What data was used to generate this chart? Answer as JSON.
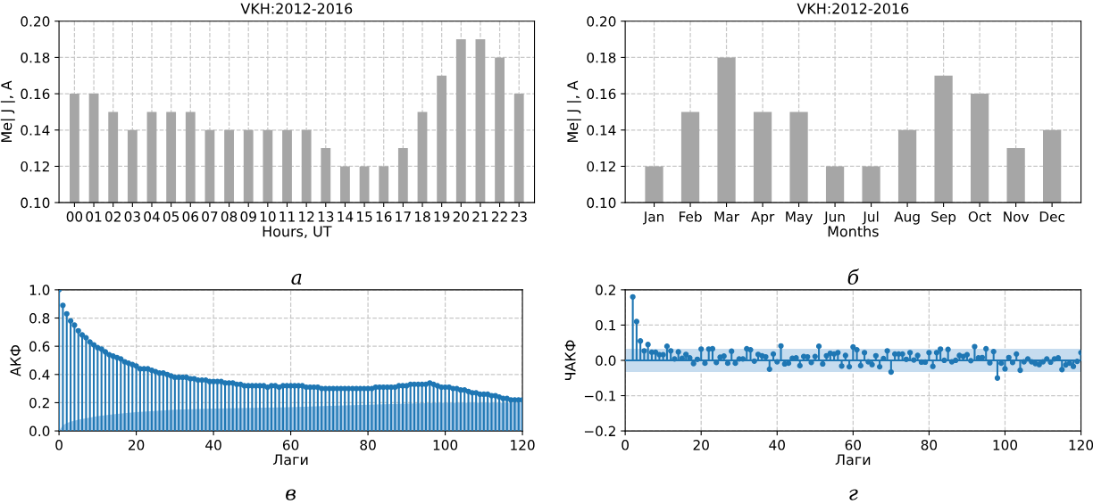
{
  "chart_data": [
    {
      "type": "bar",
      "title": "VKH:2012-2016",
      "xlabel": "Hours, UT",
      "ylabel": "Me| J |, A",
      "categories": [
        "00",
        "01",
        "02",
        "03",
        "04",
        "05",
        "06",
        "07",
        "08",
        "09",
        "10",
        "11",
        "12",
        "13",
        "14",
        "15",
        "16",
        "17",
        "18",
        "19",
        "20",
        "21",
        "22",
        "23"
      ],
      "series": [
        {
          "color": "#a6a6a6",
          "values": [
            0.16,
            0.16,
            0.15,
            0.14,
            0.15,
            0.15,
            0.15,
            0.14,
            0.14,
            0.14,
            0.14,
            0.14,
            0.14,
            0.13,
            0.12,
            0.12,
            0.12,
            0.13,
            0.15,
            0.17,
            0.19,
            0.19,
            0.18,
            0.16
          ]
        }
      ],
      "ylim": [
        0.1,
        0.2
      ],
      "yticks": [
        {
          "value": 0.1,
          "label": "0.10"
        },
        {
          "value": 0.12,
          "label": "0.12"
        },
        {
          "value": 0.14,
          "label": "0.14"
        },
        {
          "value": 0.16,
          "label": "0.16"
        },
        {
          "value": 0.18,
          "label": "0.18"
        },
        {
          "value": 0.2,
          "label": "0.20"
        }
      ],
      "grid": true,
      "annotations": [
        "а"
      ]
    },
    {
      "type": "bar",
      "title": "VKH:2012-2016",
      "xlabel": "Months",
      "ylabel": "Me| J |, A",
      "categories": [
        "Jan",
        "Feb",
        "Mar",
        "Apr",
        "May",
        "Jun",
        "Jul",
        "Aug",
        "Sep",
        "Oct",
        "Nov",
        "Dec"
      ],
      "series": [
        {
          "color": "#a6a6a6",
          "values": [
            0.12,
            0.15,
            0.18,
            0.15,
            0.15,
            0.12,
            0.12,
            0.14,
            0.17,
            0.16,
            0.13,
            0.14
          ]
        }
      ],
      "ylim": [
        0.1,
        0.2
      ],
      "yticks": [
        {
          "value": 0.1,
          "label": "0.10"
        },
        {
          "value": 0.12,
          "label": "0.12"
        },
        {
          "value": 0.14,
          "label": "0.14"
        },
        {
          "value": 0.16,
          "label": "0.16"
        },
        {
          "value": 0.18,
          "label": "0.18"
        },
        {
          "value": 0.2,
          "label": "0.20"
        }
      ],
      "grid": true,
      "annotations": [
        "б"
      ]
    },
    {
      "type": "lollipop",
      "xlabel": "Лаги",
      "ylabel": "АКФ",
      "series": [
        {
          "type": "lollipop",
          "marker": "circle",
          "color": "#1f77b4",
          "x": [
            0,
            1,
            2,
            3,
            4,
            5,
            6,
            7,
            8,
            9,
            10,
            11,
            12,
            13,
            14,
            15,
            16,
            17,
            18,
            19,
            20,
            21,
            22,
            23,
            24,
            25,
            26,
            27,
            28,
            29,
            30,
            31,
            32,
            33,
            34,
            35,
            36,
            37,
            38,
            39,
            40,
            41,
            42,
            43,
            44,
            45,
            46,
            47,
            48,
            49,
            50,
            51,
            52,
            53,
            54,
            55,
            56,
            57,
            58,
            59,
            60,
            61,
            62,
            63,
            64,
            65,
            66,
            67,
            68,
            69,
            70,
            71,
            72,
            73,
            74,
            75,
            76,
            77,
            78,
            79,
            80,
            81,
            82,
            83,
            84,
            85,
            86,
            87,
            88,
            89,
            90,
            91,
            92,
            93,
            94,
            95,
            96,
            97,
            98,
            99,
            100,
            101,
            102,
            103,
            104,
            105,
            106,
            107,
            108,
            109,
            110,
            111,
            112,
            113,
            114,
            115,
            116,
            117,
            118,
            119,
            120
          ],
          "values": [
            1.0,
            0.89,
            0.83,
            0.78,
            0.75,
            0.71,
            0.68,
            0.66,
            0.63,
            0.61,
            0.59,
            0.58,
            0.56,
            0.54,
            0.53,
            0.52,
            0.51,
            0.49,
            0.48,
            0.47,
            0.46,
            0.44,
            0.44,
            0.44,
            0.43,
            0.42,
            0.41,
            0.41,
            0.4,
            0.39,
            0.38,
            0.38,
            0.38,
            0.38,
            0.37,
            0.37,
            0.36,
            0.36,
            0.36,
            0.35,
            0.35,
            0.35,
            0.35,
            0.34,
            0.34,
            0.34,
            0.33,
            0.33,
            0.32,
            0.32,
            0.32,
            0.32,
            0.32,
            0.32,
            0.31,
            0.32,
            0.32,
            0.31,
            0.32,
            0.32,
            0.32,
            0.32,
            0.32,
            0.32,
            0.31,
            0.31,
            0.31,
            0.31,
            0.3,
            0.3,
            0.3,
            0.3,
            0.3,
            0.3,
            0.3,
            0.3,
            0.3,
            0.3,
            0.3,
            0.3,
            0.3,
            0.3,
            0.31,
            0.31,
            0.31,
            0.31,
            0.31,
            0.31,
            0.32,
            0.32,
            0.32,
            0.33,
            0.33,
            0.33,
            0.33,
            0.33,
            0.34,
            0.33,
            0.32,
            0.31,
            0.31,
            0.31,
            0.3,
            0.3,
            0.29,
            0.29,
            0.28,
            0.27,
            0.27,
            0.26,
            0.26,
            0.26,
            0.25,
            0.25,
            0.24,
            0.23,
            0.23,
            0.22,
            0.22,
            0.22,
            0.22
          ]
        },
        {
          "type": "area",
          "color": "#a3c8e7",
          "x": [
            0,
            1,
            2,
            3,
            5,
            10,
            15,
            20,
            30,
            40,
            50,
            60,
            70,
            80,
            90,
            100,
            110,
            120
          ],
          "values": [
            0,
            0.04,
            0.055,
            0.065,
            0.08,
            0.105,
            0.12,
            0.133,
            0.15,
            0.158,
            0.164,
            0.168,
            0.177,
            0.185,
            0.193,
            0.2,
            0.2,
            0.2
          ]
        }
      ],
      "xlim": [
        0,
        120
      ],
      "xticks": [
        0,
        20,
        40,
        60,
        80,
        100,
        120
      ],
      "ylim": [
        0,
        1.0
      ],
      "yticks": [
        {
          "value": 0,
          "label": "0.0"
        },
        {
          "value": 0.2,
          "label": "0.2"
        },
        {
          "value": 0.4,
          "label": "0.4"
        },
        {
          "value": 0.6,
          "label": "0.6"
        },
        {
          "value": 0.8,
          "label": "0.8"
        },
        {
          "value": 1.0,
          "label": "1.0"
        }
      ],
      "grid": true,
      "annotations": [
        "в"
      ]
    },
    {
      "type": "lollipop",
      "xlabel": "Лаги",
      "ylabel": "ЧАКФ",
      "series": [
        {
          "type": "lollipop",
          "marker": "circle",
          "color": "#1f77b4",
          "x": [
            2,
            3,
            4,
            5,
            6,
            7,
            8,
            9,
            10,
            11,
            12,
            13,
            14,
            15,
            16,
            17,
            18,
            19,
            20,
            21,
            22,
            23,
            24,
            25,
            26,
            27,
            28,
            29,
            30,
            31,
            32,
            33,
            34,
            35,
            36,
            37,
            38,
            39,
            40,
            41,
            42,
            43,
            44,
            45,
            46,
            47,
            48,
            49,
            50,
            51,
            52,
            53,
            54,
            55,
            56,
            57,
            58,
            59,
            60,
            61,
            62,
            63,
            64,
            65,
            66,
            67,
            68,
            69,
            70,
            71,
            72,
            73,
            74,
            75,
            76,
            77,
            78,
            79,
            80,
            81,
            82,
            83,
            84,
            85,
            86,
            87,
            88,
            89,
            90,
            91,
            92,
            93,
            94,
            95,
            96,
            97,
            98,
            99,
            100,
            101,
            102,
            103,
            104,
            105,
            106,
            107,
            108,
            109,
            110,
            111,
            112,
            113,
            114,
            115,
            116,
            117,
            118,
            119,
            120
          ],
          "values": [
            0.18,
            0.11,
            0.055,
            0.027,
            0.045,
            0.023,
            0.023,
            0.016,
            0.016,
            0.04,
            0.027,
            0.004,
            0.024,
            0.006,
            0.017,
            0.007,
            -0.009,
            0.003,
            0.032,
            -0.008,
            0.032,
            0.033,
            -0.006,
            0.009,
            0.012,
            -0.008,
            0.026,
            -0.008,
            0.004,
            0.004,
            0.033,
            0.03,
            -0.002,
            0.017,
            0.013,
            0.01,
            -0.025,
            0.018,
            -0.004,
            0.041,
            -0.01,
            -0.008,
            0.006,
            0.007,
            -0.015,
            0.011,
            0.01,
            -0.006,
            0.011,
            0.04,
            -0.01,
            0.013,
            0.02,
            0.018,
            0.022,
            -0.016,
            0.014,
            -0.018,
            0.038,
            0.03,
            -0.015,
            0.022,
            -0.004,
            -0.012,
            0.013,
            -0.018,
            0.005,
            0.027,
            -0.033,
            0.018,
            0.018,
            0.018,
            0.003,
            0.022,
            0.001,
            0.014,
            -0.005,
            -0.005,
            0.022,
            -0.017,
            0.022,
            0.032,
            0.0,
            0.031,
            -0.004,
            0.0,
            0.014,
            0.011,
            0.016,
            -0.001,
            0.039,
            0.007,
            0.008,
            0.033,
            -0.007,
            0.025,
            -0.05,
            -0.008,
            -0.024,
            0.008,
            -0.006,
            0.018,
            -0.028,
            -0.004,
            0.004,
            -0.004,
            -0.009,
            -0.012,
            -0.004,
            0.004,
            -0.005,
            0.004,
            0.007,
            -0.026,
            -0.013,
            -0.008,
            -0.017,
            -0.003,
            0.022
          ]
        }
      ],
      "bands": [
        {
          "axis": "y",
          "from": -0.033,
          "to": 0.033,
          "color": "#c6dcef"
        }
      ],
      "ref_lines": [
        {
          "axis": "y",
          "value": 0,
          "color": "#1f77b4"
        }
      ],
      "xlim": [
        0,
        120
      ],
      "xticks": [
        0,
        20,
        40,
        60,
        80,
        100,
        120
      ],
      "ylim": [
        -0.2,
        0.2
      ],
      "yticks": [
        {
          "value": -0.2,
          "label": "−0.2"
        },
        {
          "value": -0.1,
          "label": "−0.1"
        },
        {
          "value": 0,
          "label": "0.0"
        },
        {
          "value": 0.1,
          "label": "0.1"
        },
        {
          "value": 0.2,
          "label": "0.2"
        }
      ],
      "grid": true,
      "annotations": [
        "г"
      ]
    }
  ]
}
